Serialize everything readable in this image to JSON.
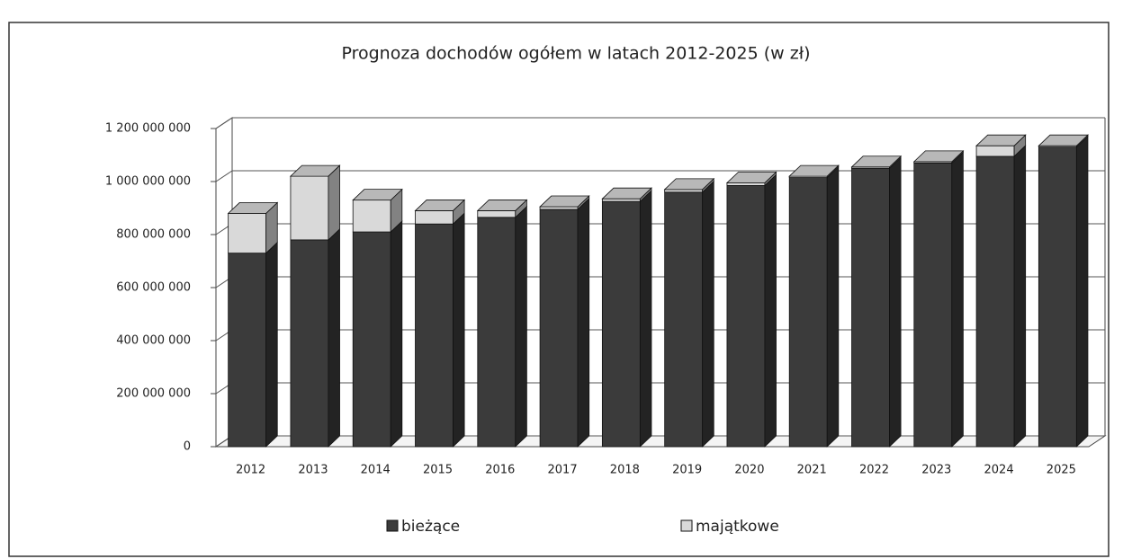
{
  "chart_data": {
    "type": "bar3d_stacked",
    "title": "Prognoza dochodów ogółem w latach 2012-2025 (w zł)",
    "categories": [
      "2012",
      "2013",
      "2014",
      "2015",
      "2016",
      "2017",
      "2018",
      "2019",
      "2020",
      "2021",
      "2022",
      "2023",
      "2024",
      "2025"
    ],
    "series": [
      {
        "name": "bieżące",
        "color": "#3b3b3b",
        "values": [
          730000000,
          780000000,
          810000000,
          840000000,
          865000000,
          895000000,
          925000000,
          960000000,
          985000000,
          1015000000,
          1050000000,
          1070000000,
          1095000000,
          1130000000
        ]
      },
      {
        "name": "majątkowe",
        "color": "#d9d9d9",
        "values": [
          150000000,
          240000000,
          120000000,
          50000000,
          25000000,
          10000000,
          10000000,
          10000000,
          10000000,
          5000000,
          5000000,
          5000000,
          40000000,
          5000000
        ]
      }
    ],
    "ylim": [
      0,
      1200000000
    ],
    "yticks": [
      0,
      {
        "value": 200000000,
        "label": "200 000 000"
      },
      {
        "value": 400000000,
        "label": "400 000 000"
      },
      {
        "value": 600000000,
        "label": "600 000 000"
      },
      {
        "value": 800000000,
        "label": "800 000 000"
      },
      {
        "value": 1000000000,
        "label": "1 000 000 000"
      },
      {
        "value": 1200000000,
        "label": "1 200 000 000"
      }
    ],
    "grid": true,
    "legend": "bottom"
  }
}
